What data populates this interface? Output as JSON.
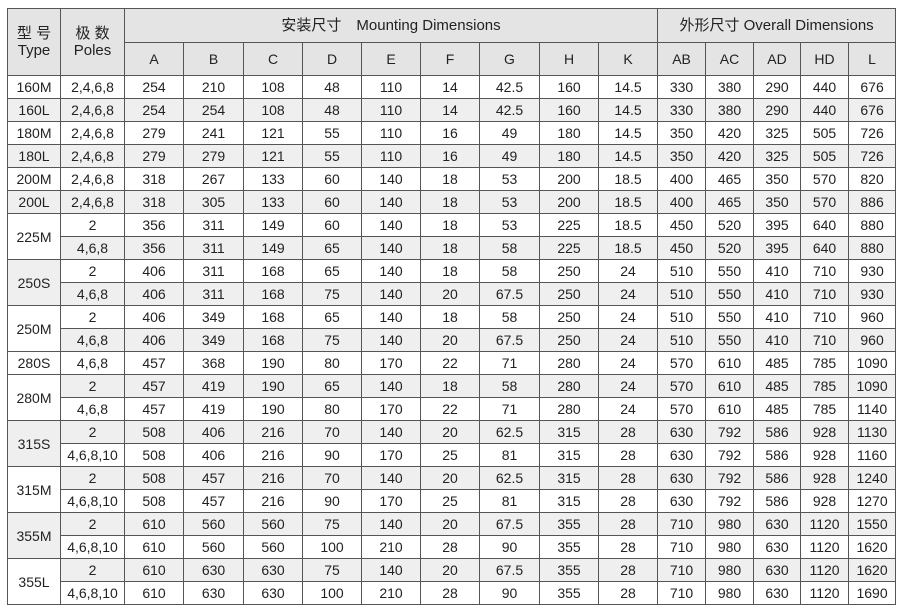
{
  "header": {
    "type_cn": "型 号",
    "type_en": "Type",
    "poles_cn": "极 数",
    "poles_en": "Poles",
    "mounting": "安装尺寸　Mounting Dimensions",
    "overall": "外形尺寸 Overall Dimensions",
    "mounting_cols": [
      "A",
      "B",
      "C",
      "D",
      "E",
      "F",
      "G",
      "H",
      "K"
    ],
    "overall_cols": [
      "AB",
      "AC",
      "AD",
      "HD",
      "L"
    ]
  },
  "groups": [
    {
      "type": "160M",
      "rows": [
        {
          "poles": "2,4,6,8",
          "values": [
            "254",
            "210",
            "108",
            "48",
            "110",
            "14",
            "42.5",
            "160",
            "14.5",
            "330",
            "380",
            "290",
            "440",
            "676"
          ]
        }
      ]
    },
    {
      "type": "160L",
      "rows": [
        {
          "poles": "2,4,6,8",
          "values": [
            "254",
            "254",
            "108",
            "48",
            "110",
            "14",
            "42.5",
            "160",
            "14.5",
            "330",
            "380",
            "290",
            "440",
            "676"
          ]
        }
      ]
    },
    {
      "type": "180M",
      "rows": [
        {
          "poles": "2,4,6,8",
          "values": [
            "279",
            "241",
            "121",
            "55",
            "110",
            "16",
            "49",
            "180",
            "14.5",
            "350",
            "420",
            "325",
            "505",
            "726"
          ]
        }
      ]
    },
    {
      "type": "180L",
      "rows": [
        {
          "poles": "2,4,6,8",
          "values": [
            "279",
            "279",
            "121",
            "55",
            "110",
            "16",
            "49",
            "180",
            "14.5",
            "350",
            "420",
            "325",
            "505",
            "726"
          ]
        }
      ]
    },
    {
      "type": "200M",
      "rows": [
        {
          "poles": "2,4,6,8",
          "values": [
            "318",
            "267",
            "133",
            "60",
            "140",
            "18",
            "53",
            "200",
            "18.5",
            "400",
            "465",
            "350",
            "570",
            "820"
          ]
        }
      ]
    },
    {
      "type": "200L",
      "rows": [
        {
          "poles": "2,4,6,8",
          "values": [
            "318",
            "305",
            "133",
            "60",
            "140",
            "18",
            "53",
            "200",
            "18.5",
            "400",
            "465",
            "350",
            "570",
            "886"
          ]
        }
      ]
    },
    {
      "type": "225M",
      "rows": [
        {
          "poles": "2",
          "values": [
            "356",
            "311",
            "149",
            "60",
            "140",
            "18",
            "53",
            "225",
            "18.5",
            "450",
            "520",
            "395",
            "640",
            "880"
          ]
        },
        {
          "poles": "4,6,8",
          "values": [
            "356",
            "311",
            "149",
            "65",
            "140",
            "18",
            "58",
            "225",
            "18.5",
            "450",
            "520",
            "395",
            "640",
            "880"
          ]
        }
      ]
    },
    {
      "type": "250S",
      "rows": [
        {
          "poles": "2",
          "values": [
            "406",
            "311",
            "168",
            "65",
            "140",
            "18",
            "58",
            "250",
            "24",
            "510",
            "550",
            "410",
            "710",
            "930"
          ]
        },
        {
          "poles": "4,6,8",
          "values": [
            "406",
            "311",
            "168",
            "75",
            "140",
            "20",
            "67.5",
            "250",
            "24",
            "510",
            "550",
            "410",
            "710",
            "930"
          ]
        }
      ]
    },
    {
      "type": "250M",
      "rows": [
        {
          "poles": "2",
          "values": [
            "406",
            "349",
            "168",
            "65",
            "140",
            "18",
            "58",
            "250",
            "24",
            "510",
            "550",
            "410",
            "710",
            "960"
          ]
        },
        {
          "poles": "4,6,8",
          "values": [
            "406",
            "349",
            "168",
            "75",
            "140",
            "20",
            "67.5",
            "250",
            "24",
            "510",
            "550",
            "410",
            "710",
            "960"
          ]
        }
      ]
    },
    {
      "type": "280S",
      "rows": [
        {
          "poles": "4,6,8",
          "values": [
            "457",
            "368",
            "190",
            "80",
            "170",
            "22",
            "71",
            "280",
            "24",
            "570",
            "610",
            "485",
            "785",
            "1090"
          ]
        }
      ]
    },
    {
      "type": "280M",
      "rows": [
        {
          "poles": "2",
          "values": [
            "457",
            "419",
            "190",
            "65",
            "140",
            "18",
            "58",
            "280",
            "24",
            "570",
            "610",
            "485",
            "785",
            "1090"
          ]
        },
        {
          "poles": "4,6,8",
          "values": [
            "457",
            "419",
            "190",
            "80",
            "170",
            "22",
            "71",
            "280",
            "24",
            "570",
            "610",
            "485",
            "785",
            "1140"
          ]
        }
      ]
    },
    {
      "type": "315S",
      "rows": [
        {
          "poles": "2",
          "values": [
            "508",
            "406",
            "216",
            "70",
            "140",
            "20",
            "62.5",
            "315",
            "28",
            "630",
            "792",
            "586",
            "928",
            "1130"
          ]
        },
        {
          "poles": "4,6,8,10",
          "values": [
            "508",
            "406",
            "216",
            "90",
            "170",
            "25",
            "81",
            "315",
            "28",
            "630",
            "792",
            "586",
            "928",
            "1160"
          ]
        }
      ]
    },
    {
      "type": "315M",
      "rows": [
        {
          "poles": "2",
          "values": [
            "508",
            "457",
            "216",
            "70",
            "140",
            "20",
            "62.5",
            "315",
            "28",
            "630",
            "792",
            "586",
            "928",
            "1240"
          ]
        },
        {
          "poles": "4,6,8,10",
          "values": [
            "508",
            "457",
            "216",
            "90",
            "170",
            "25",
            "81",
            "315",
            "28",
            "630",
            "792",
            "586",
            "928",
            "1270"
          ]
        }
      ]
    },
    {
      "type": "355M",
      "rows": [
        {
          "poles": "2",
          "values": [
            "610",
            "560",
            "560",
            "75",
            "140",
            "20",
            "67.5",
            "355",
            "28",
            "710",
            "980",
            "630",
            "1120",
            "1550"
          ]
        },
        {
          "poles": "4,6,8,10",
          "values": [
            "610",
            "560",
            "560",
            "100",
            "210",
            "28",
            "90",
            "355",
            "28",
            "710",
            "980",
            "630",
            "1120",
            "1620"
          ]
        }
      ]
    },
    {
      "type": "355L",
      "rows": [
        {
          "poles": "2",
          "values": [
            "610",
            "630",
            "630",
            "75",
            "140",
            "20",
            "67.5",
            "355",
            "28",
            "710",
            "980",
            "630",
            "1120",
            "1620"
          ]
        },
        {
          "poles": "4,6,8,10",
          "values": [
            "610",
            "630",
            "630",
            "100",
            "210",
            "28",
            "90",
            "355",
            "28",
            "710",
            "980",
            "630",
            "1120",
            "1690"
          ]
        }
      ]
    }
  ]
}
